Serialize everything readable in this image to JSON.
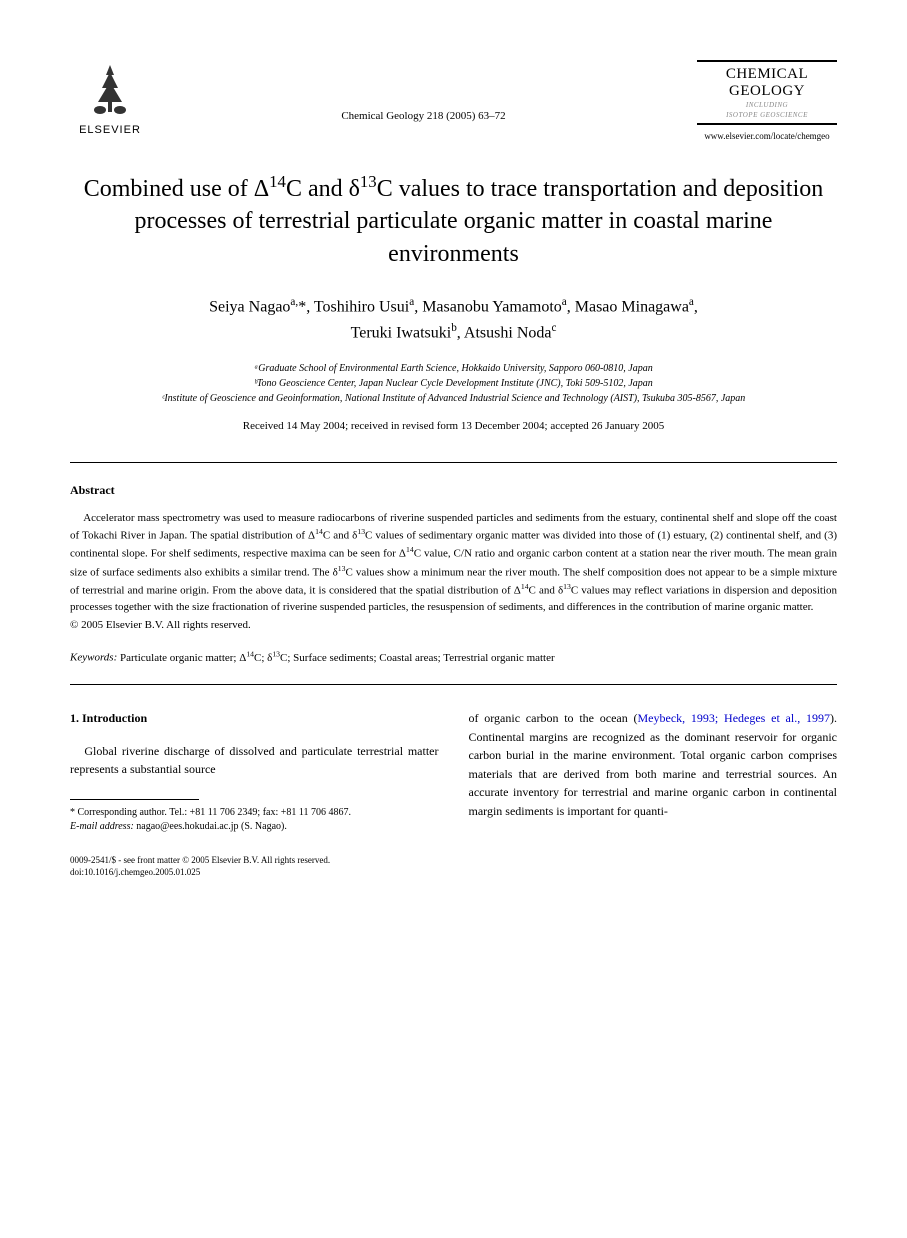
{
  "header": {
    "publisher": "ELSEVIER",
    "citation": "Chemical Geology 218 (2005) 63–72",
    "journal_name_1": "CHEMICAL",
    "journal_name_2": "GEOLOGY",
    "journal_sub_1": "INCLUDING",
    "journal_sub_2": "ISOTOPE GEOSCIENCE",
    "journal_url": "www.elsevier.com/locate/chemgeo"
  },
  "title_html": "Combined use of Δ<sup>14</sup>C and δ<sup>13</sup>C values to trace transportation and deposition processes of terrestrial particulate organic matter in coastal marine environments",
  "authors_html": "Seiya Nagao<sup>a,</sup>*, Toshihiro Usui<sup>a</sup>, Masanobu Yamamoto<sup>a</sup>, Masao Minagawa<sup>a</sup>,<br>Teruki Iwatsuki<sup>b</sup>, Atsushi Noda<sup>c</sup>",
  "affiliations": [
    "ᵃGraduate School of Environmental Earth Science, Hokkaido University, Sapporo 060-0810, Japan",
    "ᵇTono Geoscience Center, Japan Nuclear Cycle Development Institute (JNC), Toki 509-5102, Japan",
    "ᶜInstitute of Geoscience and Geoinformation, National Institute of Advanced Industrial Science and Technology (AIST), Tsukuba 305-8567, Japan"
  ],
  "dates": "Received 14 May 2004; received in revised form 13 December 2004; accepted 26 January 2005",
  "abstract": {
    "heading": "Abstract",
    "text_html": "Accelerator mass spectrometry was used to measure radiocarbons of riverine suspended particles and sediments from the estuary, continental shelf and slope off the coast of Tokachi River in Japan. The spatial distribution of Δ<sup>14</sup>C and δ<sup>13</sup>C values of sedimentary organic matter was divided into those of (1) estuary, (2) continental shelf, and (3) continental slope. For shelf sediments, respective maxima can be seen for Δ<sup>14</sup>C value, C/N ratio and organic carbon content at a station near the river mouth. The mean grain size of surface sediments also exhibits a similar trend. The δ<sup>13</sup>C values show a minimum near the river mouth. The shelf composition does not appear to be a simple mixture of terrestrial and marine origin. From the above data, it is considered that the spatial distribution of Δ<sup>14</sup>C and δ<sup>13</sup>C values may reflect variations in dispersion and deposition processes together with the size fractionation of riverine suspended particles, the resuspension of sediments, and differences in the contribution of marine organic matter.",
    "copyright": "© 2005 Elsevier B.V. All rights reserved."
  },
  "keywords": {
    "label": "Keywords:",
    "text_html": "Particulate organic matter; Δ<sup>14</sup>C; δ<sup>13</sup>C; Surface sediments; Coastal areas; Terrestrial organic matter"
  },
  "intro": {
    "heading": "1. Introduction",
    "col1_html": "Global riverine discharge of dissolved and particulate terrestrial matter represents a substantial source",
    "col2_html": "of organic carbon to the ocean (<span class=\"cite-link\">Meybeck, 1993; Hedeges et al., 1997</span>). Continental margins are recognized as the dominant reservoir for organic carbon burial in the marine environment. Total organic carbon comprises materials that are derived from both marine and terrestrial sources. An accurate inventory for terrestrial and marine organic carbon in continental margin sediments is important for quanti-"
  },
  "footnote": {
    "corr": "* Corresponding author. Tel.: +81 11 706 2349; fax: +81 11 706 4867.",
    "email_label": "E-mail address:",
    "email": "nagao@ees.hokudai.ac.jp (S. Nagao)."
  },
  "footer": {
    "line1": "0009-2541/$ - see front matter © 2005 Elsevier B.V. All rights reserved.",
    "line2": "doi:10.1016/j.chemgeo.2005.01.025"
  },
  "colors": {
    "text": "#000000",
    "link": "#0000cc",
    "background": "#ffffff"
  }
}
